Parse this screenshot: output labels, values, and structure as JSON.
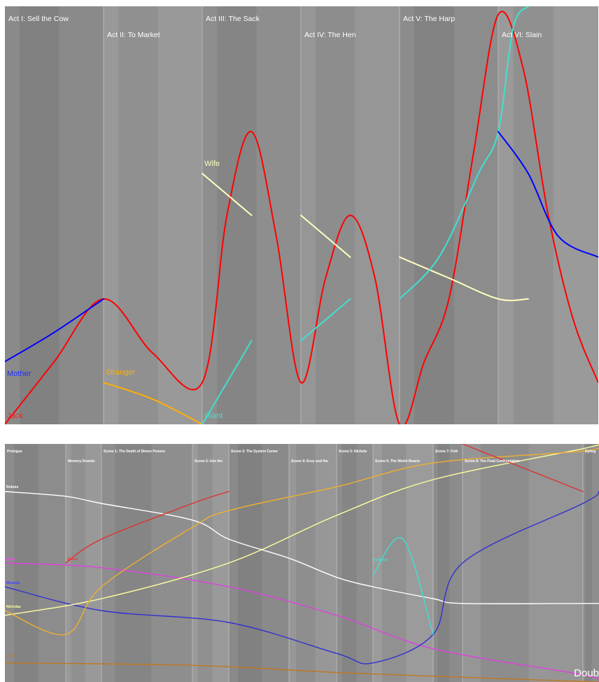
{
  "chart_data": [
    {
      "type": "line",
      "sections": [
        {
          "label": "Act I: Sell the Cow"
        },
        {
          "label": "Act II: To Market"
        },
        {
          "label": "Act III: The Sack"
        },
        {
          "label": "Act IV: The Hen"
        },
        {
          "label": "Act V: The Harp"
        },
        {
          "label": "Act VI: Slain"
        }
      ],
      "series": [
        {
          "name": "Jack",
          "color": "#ff0000",
          "points": [
            [
              0,
              0
            ],
            [
              0.5,
              0.15
            ],
            [
              1,
              0.3
            ],
            [
              1.5,
              0.17
            ],
            [
              2,
              0.1
            ],
            [
              2.25,
              0.5
            ],
            [
              2.5,
              0.7
            ],
            [
              2.75,
              0.45
            ],
            [
              3,
              0.1
            ],
            [
              3.25,
              0.35
            ],
            [
              3.5,
              0.5
            ],
            [
              3.75,
              0.35
            ],
            [
              4,
              0
            ],
            [
              4.25,
              0.15
            ],
            [
              4.5,
              0.3
            ],
            [
              4.75,
              0.65
            ],
            [
              5,
              0.98
            ],
            [
              5.25,
              0.85
            ],
            [
              5.5,
              0.5
            ],
            [
              5.75,
              0.25
            ],
            [
              6,
              0.1
            ]
          ]
        },
        {
          "name": "Mother",
          "color": "#0000ff",
          "points": [
            [
              0,
              0.15
            ],
            [
              0.5,
              0.22
            ],
            [
              1,
              0.3
            ]
          ]
        },
        {
          "name": "Stranger",
          "color": "#ffb000",
          "points": [
            [
              1,
              0.1
            ],
            [
              1.5,
              0.06
            ],
            [
              2,
              0
            ]
          ]
        },
        {
          "name": "Wife",
          "color": "#ffffc0",
          "points": [
            [
              2,
              0.6
            ],
            [
              2.25,
              0.55
            ],
            [
              2.5,
              0.5
            ]
          ]
        },
        {
          "name": "Giant",
          "color": "#40e0d0",
          "points": [
            [
              2,
              0
            ],
            [
              2.25,
              0.1
            ],
            [
              2.5,
              0.2
            ]
          ]
        },
        {
          "name": "",
          "color": "#ffffc0",
          "points": [
            [
              3,
              0.5
            ],
            [
              3.25,
              0.45
            ],
            [
              3.5,
              0.4
            ]
          ]
        },
        {
          "name": "",
          "color": "#40e0d0",
          "points": [
            [
              3,
              0.2
            ],
            [
              3.25,
              0.25
            ],
            [
              3.5,
              0.3
            ]
          ]
        },
        {
          "name": "",
          "color": "#ffffc0",
          "points": [
            [
              4,
              0.4
            ],
            [
              4.5,
              0.35
            ],
            [
              5,
              0.3
            ],
            [
              5.3,
              0.3
            ]
          ]
        },
        {
          "name": "",
          "color": "#40e0d0",
          "points": [
            [
              4,
              0.3
            ],
            [
              4.4,
              0.4
            ],
            [
              4.8,
              0.6
            ],
            [
              5,
              0.7
            ],
            [
              5.15,
              0.95
            ],
            [
              5.3,
              1.0
            ]
          ]
        },
        {
          "name": "",
          "color": "#0000ff",
          "points": [
            [
              5,
              0.7
            ],
            [
              5.3,
              0.6
            ],
            [
              5.6,
              0.45
            ],
            [
              6,
              0.4
            ]
          ]
        }
      ]
    },
    {
      "type": "line",
      "sections": [
        {
          "label": "Prologue"
        },
        {
          "label": "Memory Downlo"
        },
        {
          "label": "Scene 1: The Death of Simon Powers"
        },
        {
          "label": "Scene 2: Into the"
        },
        {
          "label": "Scene 3: The System Conne"
        },
        {
          "label": "Scene 4: Evvy and the"
        },
        {
          "label": "Scene 5: Nichola"
        },
        {
          "label": "Scene 6: The World Reacts"
        },
        {
          "label": "Scene 7: Folk"
        },
        {
          "label": "Scene 8: The Final Confrontation"
        },
        {
          "label": "Epilog"
        }
      ],
      "series": [
        {
          "name": "Robots",
          "color": "#ffffff",
          "points": [
            [
              0,
              0.8
            ],
            [
              1,
              0.78
            ],
            [
              2,
              0.75
            ],
            [
              3,
              0.68
            ],
            [
              4,
              0.6
            ],
            [
              5,
              0.52
            ],
            [
              6,
              0.44
            ],
            [
              7,
              0.4
            ],
            [
              8,
              0.35
            ],
            [
              9,
              0.33
            ],
            [
              10,
              0.33
            ],
            [
              11,
              0.33
            ]
          ]
        },
        {
          "name": "Simon",
          "color": "#e03030",
          "points": [
            [
              1,
              0.5
            ],
            [
              2,
              0.6
            ],
            [
              3,
              0.75
            ],
            [
              4,
              0.8
            ]
          ]
        },
        {
          "name": "Karan",
          "color": "#e040e0",
          "points": [
            [
              0,
              0.5
            ],
            [
              2,
              0.48
            ],
            [
              4,
              0.4
            ],
            [
              6,
              0.28
            ],
            [
              8,
              0.14
            ],
            [
              10,
              0.03
            ],
            [
              11,
              0.0
            ]
          ]
        },
        {
          "name": "Miranda",
          "color": "#3030d0",
          "points": [
            [
              0,
              0.4
            ],
            [
              2,
              0.3
            ],
            [
              4,
              0.25
            ],
            [
              6,
              0.12
            ],
            [
              7,
              0.08
            ],
            [
              8,
              0.2
            ],
            [
              9,
              0.5
            ],
            [
              10,
              0.75
            ],
            [
              11,
              0.8
            ]
          ]
        },
        {
          "name": "Nicholas",
          "color": "#ffffa0",
          "points": [
            [
              0,
              0.28
            ],
            [
              2,
              0.35
            ],
            [
              4,
              0.5
            ],
            [
              6,
              0.7
            ],
            [
              8,
              0.85
            ],
            [
              10,
              0.98
            ],
            [
              11,
              1.0
            ]
          ]
        },
        {
          "name": "",
          "color": "#f0b030",
          "points": [
            [
              0,
              0.3
            ],
            [
              1,
              0.2
            ],
            [
              2,
              0.4
            ],
            [
              3,
              0.65
            ],
            [
              4,
              0.72
            ],
            [
              6,
              0.82
            ],
            [
              8,
              0.92
            ],
            [
              10,
              0.97
            ],
            [
              11,
              1.0
            ]
          ]
        },
        {
          "name": "",
          "color": "#c07820",
          "points": [
            [
              0,
              0.08
            ],
            [
              3,
              0.07
            ],
            [
              6,
              0.04
            ],
            [
              9,
              0.02
            ],
            [
              11,
              0.0
            ]
          ]
        },
        {
          "name": "Designer",
          "color": "#40e0d0",
          "points": [
            [
              7,
              0.45
            ],
            [
              7.5,
              0.6
            ],
            [
              8,
              0.2
            ]
          ]
        },
        {
          "name": "",
          "color": "#e03030",
          "points": [
            [
              9,
              1.0
            ],
            [
              10,
              0.8
            ]
          ]
        }
      ]
    }
  ],
  "top": {
    "char_labels": {
      "mother": "Mother",
      "jack": "Jack",
      "stranger": "Stranger",
      "wife": "Wife",
      "giant": "Giant"
    }
  },
  "bottom": {
    "char_labels": {
      "robots": "Robots",
      "karan": "Karan",
      "simon": "Simon",
      "miranda": "Miranda",
      "nicholas": "Nicholas",
      "designer": "Designer",
      "faded": "Dennis"
    },
    "corner_text": "Doub"
  }
}
